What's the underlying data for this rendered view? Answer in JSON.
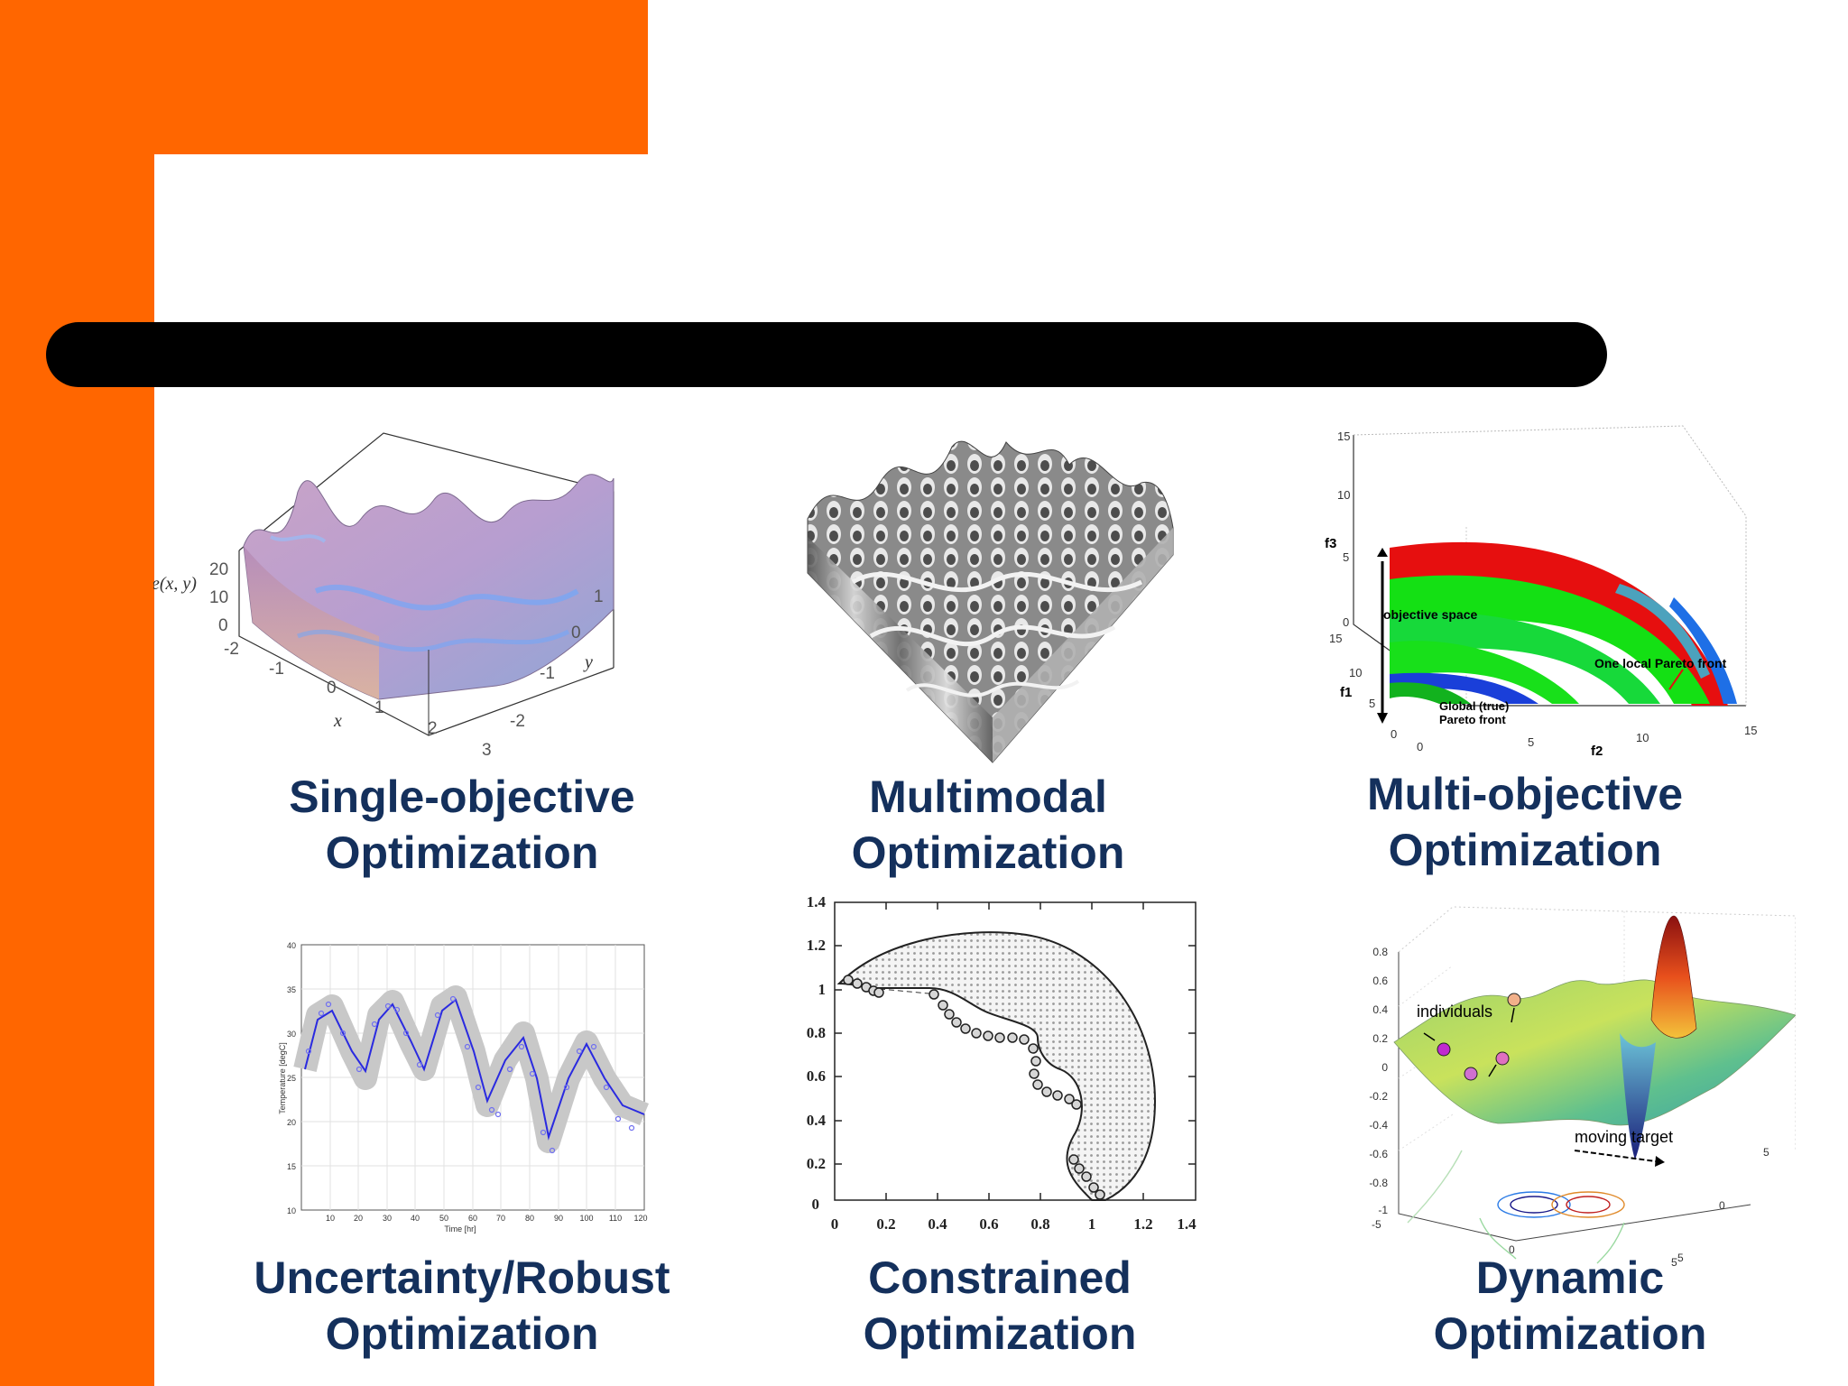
{
  "slide": {
    "accent_color": "#ff6600",
    "title_bar_color": "#000000",
    "caption_color": "#14305c"
  },
  "panels": [
    {
      "line1": "Single-objective",
      "line2": "Optimization",
      "figure": {
        "z_label": "e(x, y)",
        "x_label": "x",
        "y_label": "y",
        "z_ticks": [
          "20",
          "10",
          "0"
        ],
        "x_ticks": [
          "-2",
          "-1",
          "0",
          "1",
          "2",
          "3"
        ],
        "y_ticks": [
          "1",
          "0",
          "-1",
          "-2"
        ]
      }
    },
    {
      "line1": "Multimodal",
      "line2": "Optimization"
    },
    {
      "line1": "Multi-objective",
      "line2": "Optimization",
      "figure": {
        "z_label": "f3",
        "y_label": "f1",
        "x_label": "f2",
        "z_ticks": [
          "15",
          "10",
          "5",
          "0"
        ],
        "y_ticks": [
          "15",
          "10",
          "5",
          "0"
        ],
        "x_ticks": [
          "0",
          "5",
          "10",
          "15"
        ],
        "annotations": [
          "objective space",
          "One local Pareto front",
          "Global (true)",
          "Pareto front"
        ]
      }
    },
    {
      "line1": "Uncertainty/Robust",
      "line2": "Optimization",
      "figure": {
        "y_label": "Temperature [degC]",
        "x_label": "Time [hr]",
        "y_ticks": [
          "40",
          "35",
          "30",
          "25",
          "20",
          "15",
          "10"
        ],
        "x_ticks": [
          "10",
          "20",
          "30",
          "40",
          "50",
          "60",
          "70",
          "80",
          "90",
          "100",
          "110",
          "120"
        ]
      }
    },
    {
      "line1": "Constrained",
      "line2": "Optimization",
      "figure": {
        "y_ticks": [
          "1.4",
          "1.2",
          "1",
          "0.8",
          "0.6",
          "0.4",
          "0.2",
          "0"
        ],
        "x_ticks": [
          "0",
          "0.2",
          "0.4",
          "0.6",
          "0.8",
          "1",
          "1.2",
          "1.4"
        ]
      }
    },
    {
      "line1": "Dynamic",
      "line2": "Optimization",
      "figure": {
        "annotations": [
          "individuals",
          "moving target"
        ],
        "z_ticks": [
          "0.8",
          "0.6",
          "0.4",
          "0.2",
          "0",
          "-0.2",
          "-0.4",
          "-0.6",
          "-0.8",
          "-1"
        ],
        "x_ticks": [
          "-5",
          "0",
          "5"
        ],
        "y_ticks": [
          "5",
          "0",
          "-5"
        ]
      }
    }
  ]
}
